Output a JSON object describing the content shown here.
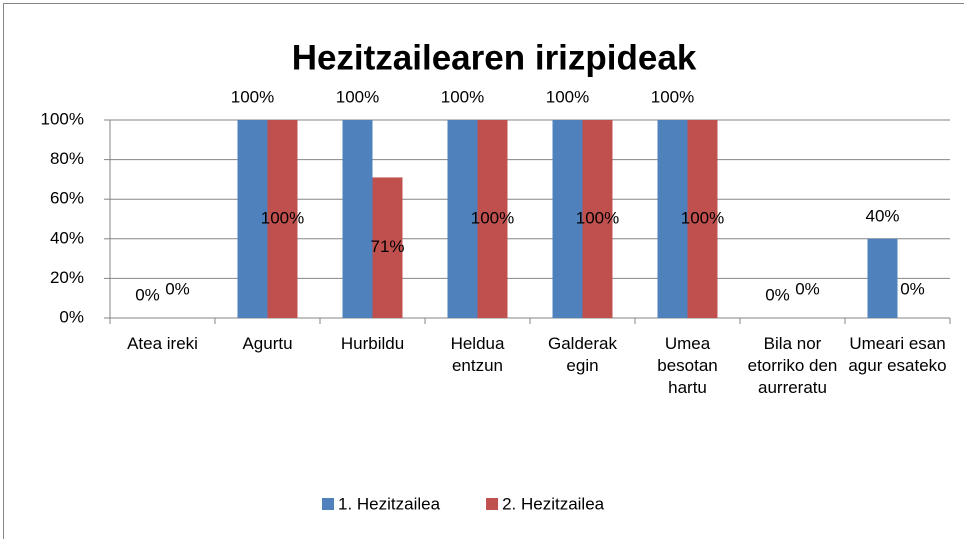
{
  "chart_data": {
    "type": "bar",
    "title": "Hezitzailearen irizpideak",
    "categories": [
      "Atea ireki",
      "Agurtu",
      "Hurbildu",
      "Heldua entzun",
      "Galderak egin",
      "Umea besotan hartu",
      "Bila nor etorriko den aurreratu",
      "Umeari esan agur esateko"
    ],
    "series": [
      {
        "name": "1. Hezitzailea",
        "color": "#4f81bd",
        "values": [
          0,
          100,
          100,
          100,
          100,
          100,
          0,
          40
        ],
        "value_labels": [
          "0%",
          "100%",
          "100%",
          "100%",
          "100%",
          "100%",
          "0%",
          "40%"
        ]
      },
      {
        "name": "2. Hezitzailea",
        "color": "#c0504d",
        "values": [
          0,
          100,
          71,
          100,
          100,
          100,
          0,
          0
        ],
        "value_labels": [
          "0%",
          "100%",
          "71%",
          "100%",
          "100%",
          "100%",
          "0%",
          "0%"
        ]
      }
    ],
    "ylim": [
      0,
      100
    ],
    "yticks": [
      {
        "value": 0,
        "label": "0%"
      },
      {
        "value": 20,
        "label": "20%"
      },
      {
        "value": 40,
        "label": "40%"
      },
      {
        "value": 60,
        "label": "60%"
      },
      {
        "value": 80,
        "label": "80%"
      },
      {
        "value": 100,
        "label": "100%"
      }
    ],
    "grid": true,
    "legend": "bottom"
  }
}
